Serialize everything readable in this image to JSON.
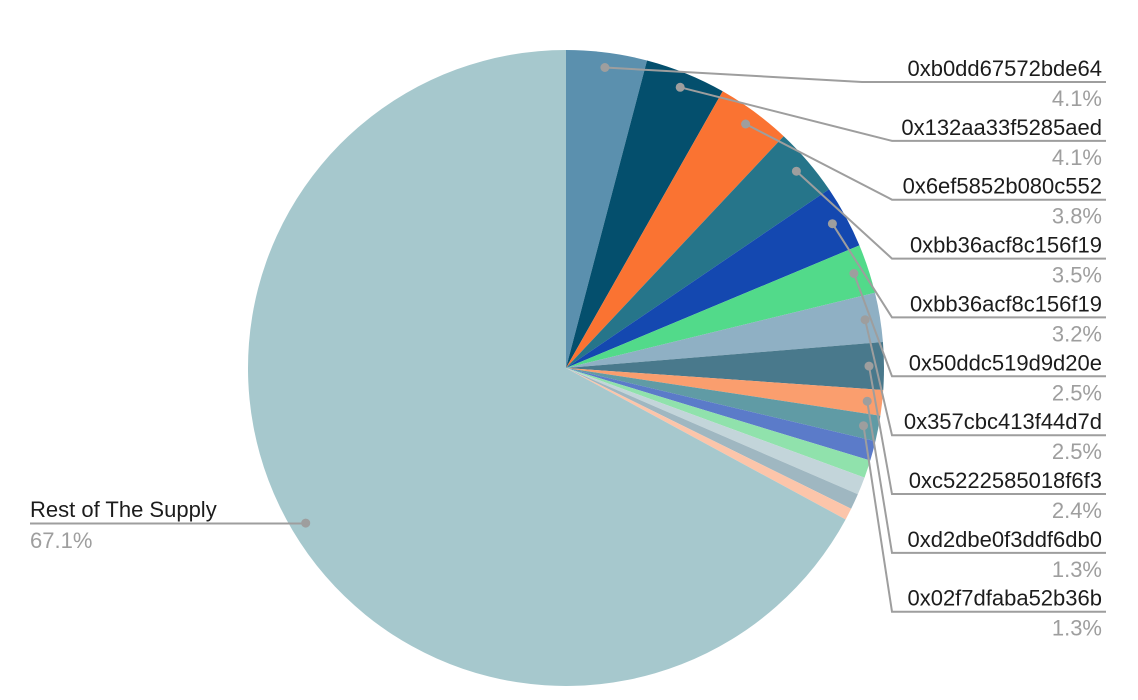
{
  "chart_data": {
    "type": "pie",
    "title": "",
    "legend_position": "none",
    "start_angle_deg": 0,
    "direction": "clockwise",
    "background": "#ffffff",
    "label_color": "#1c1c1c",
    "pct_color": "#9e9e9e",
    "line_color": "#9e9e9e",
    "slices": [
      {
        "label": "0xb0dd67572bde64",
        "pct_label": "4.1%",
        "value": 4.1,
        "color": "#5b90ae",
        "callout": "right"
      },
      {
        "label": "0x132aa33f5285aed",
        "pct_label": "4.1%",
        "value": 4.1,
        "color": "#044f6d",
        "callout": "right"
      },
      {
        "label": "0x6ef5852b080c552",
        "pct_label": "3.8%",
        "value": 3.8,
        "color": "#fa7332",
        "callout": "right"
      },
      {
        "label": "0xbb36acf8c156f19",
        "pct_label": "3.5%",
        "value": 3.5,
        "color": "#26758a",
        "callout": "right"
      },
      {
        "label": "0xbb36acf8c156f19",
        "pct_label": "3.2%",
        "value": 3.2,
        "color": "#1448b0",
        "callout": "right"
      },
      {
        "label": "0x50ddc519d9d20e",
        "pct_label": "2.5%",
        "value": 2.5,
        "color": "#52da8a",
        "callout": "right"
      },
      {
        "label": "0x357cbc413f44d7d",
        "pct_label": "2.5%",
        "value": 2.5,
        "color": "#8fb0c4",
        "callout": "right"
      },
      {
        "label": "0xc5222585018f6f3",
        "pct_label": "2.4%",
        "value": 2.4,
        "color": "#49798c",
        "callout": "right"
      },
      {
        "label": "0xd2dbe0f3ddf6db0",
        "pct_label": "1.3%",
        "value": 1.3,
        "color": "#fa9e6e",
        "callout": "right"
      },
      {
        "label": "0x02f7dfaba52b36b",
        "pct_label": "1.3%",
        "value": 1.3,
        "color": "#609ba5",
        "callout": "right"
      },
      {
        "label": null,
        "pct_label": null,
        "value": 1.0,
        "color": "#5b7bc9",
        "callout": null
      },
      {
        "label": null,
        "pct_label": null,
        "value": 0.9,
        "color": "#90e2ac",
        "callout": null
      },
      {
        "label": null,
        "pct_label": null,
        "value": 0.9,
        "color": "#c3d5da",
        "callout": null
      },
      {
        "label": null,
        "pct_label": null,
        "value": 0.8,
        "color": "#9fb7c1",
        "callout": null
      },
      {
        "label": null,
        "pct_label": null,
        "value": 0.6,
        "color": "#fcc5aa",
        "callout": null
      },
      {
        "label": "Rest of The Supply",
        "pct_label": "67.1%",
        "value": 67.1,
        "color": "#a6c8cd",
        "callout": "left"
      }
    ]
  }
}
